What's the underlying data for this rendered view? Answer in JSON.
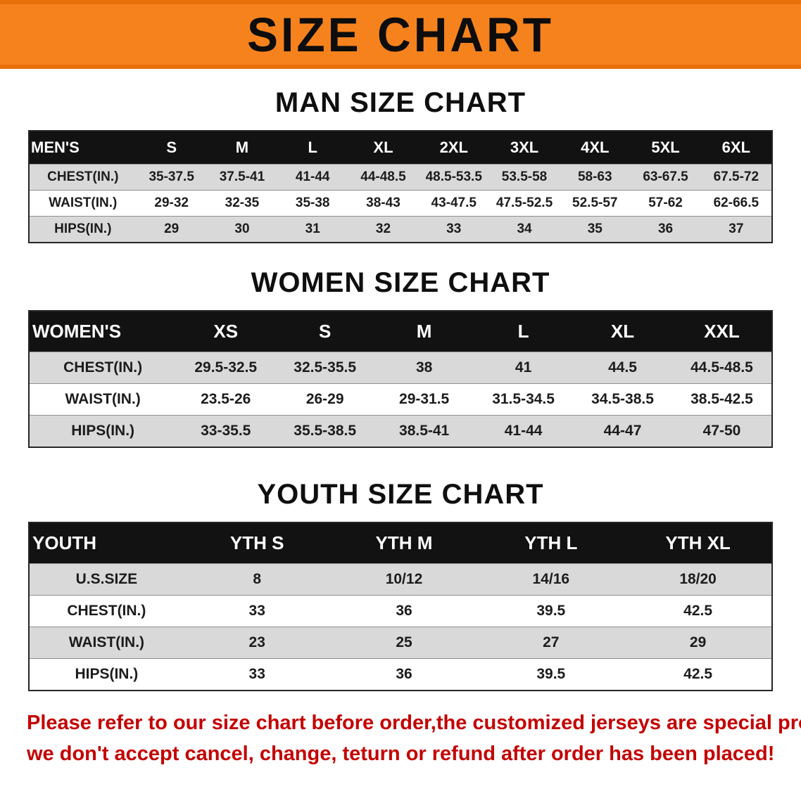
{
  "banner": {
    "title": "SIZE CHART"
  },
  "sections": [
    {
      "title": "MAN SIZE CHART",
      "table": {
        "header": [
          "MEN'S",
          "S",
          "M",
          "L",
          "XL",
          "2XL",
          "3XL",
          "4XL",
          "5XL",
          "6XL"
        ],
        "rows": [
          [
            "CHEST(IN.)",
            "35-37.5",
            "37.5-41",
            "41-44",
            "44-48.5",
            "48.5-53.5",
            "53.5-58",
            "58-63",
            "63-67.5",
            "67.5-72"
          ],
          [
            "WAIST(IN.)",
            "29-32",
            "32-35",
            "35-38",
            "38-43",
            "43-47.5",
            "47.5-52.5",
            "52.5-57",
            "57-62",
            "62-66.5"
          ],
          [
            "HIPS(IN.)",
            "29",
            "30",
            "31",
            "32",
            "33",
            "34",
            "35",
            "36",
            "37"
          ]
        ]
      }
    },
    {
      "title": "WOMEN SIZE CHART",
      "table": {
        "header": [
          "WOMEN'S",
          "XS",
          "S",
          "M",
          "L",
          "XL",
          "XXL"
        ],
        "rows": [
          [
            "CHEST(IN.)",
            "29.5-32.5",
            "32.5-35.5",
            "38",
            "41",
            "44.5",
            "44.5-48.5"
          ],
          [
            "WAIST(IN.)",
            "23.5-26",
            "26-29",
            "29-31.5",
            "31.5-34.5",
            "34.5-38.5",
            "38.5-42.5"
          ],
          [
            "HIPS(IN.)",
            "33-35.5",
            "35.5-38.5",
            "38.5-41",
            "41-44",
            "44-47",
            "47-50"
          ]
        ]
      }
    },
    {
      "title": "YOUTH SIZE CHART",
      "table": {
        "header": [
          "YOUTH",
          "YTH S",
          "YTH M",
          "YTH L",
          "YTH XL"
        ],
        "rows": [
          [
            "U.S.SIZE",
            "8",
            "10/12",
            "14/16",
            "18/20"
          ],
          [
            "CHEST(IN.)",
            "33",
            "36",
            "39.5",
            "42.5"
          ],
          [
            "WAIST(IN.)",
            "23",
            "25",
            "27",
            "29"
          ],
          [
            "HIPS(IN.)",
            "33",
            "36",
            "39.5",
            "42.5"
          ]
        ]
      }
    }
  ],
  "footer": {
    "line1": "Please refer to our size chart before order,the customized jerseys are special products,",
    "line2": "we don't accept cancel, change, teturn or refund after order has been placed!"
  },
  "colors": {
    "banner_orange": "#f6821e",
    "banner_orange_dark": "#e8700a",
    "header_black": "#121212",
    "row_stripe_gray": "#d9d9d9",
    "disclaimer_red": "#c40000"
  }
}
